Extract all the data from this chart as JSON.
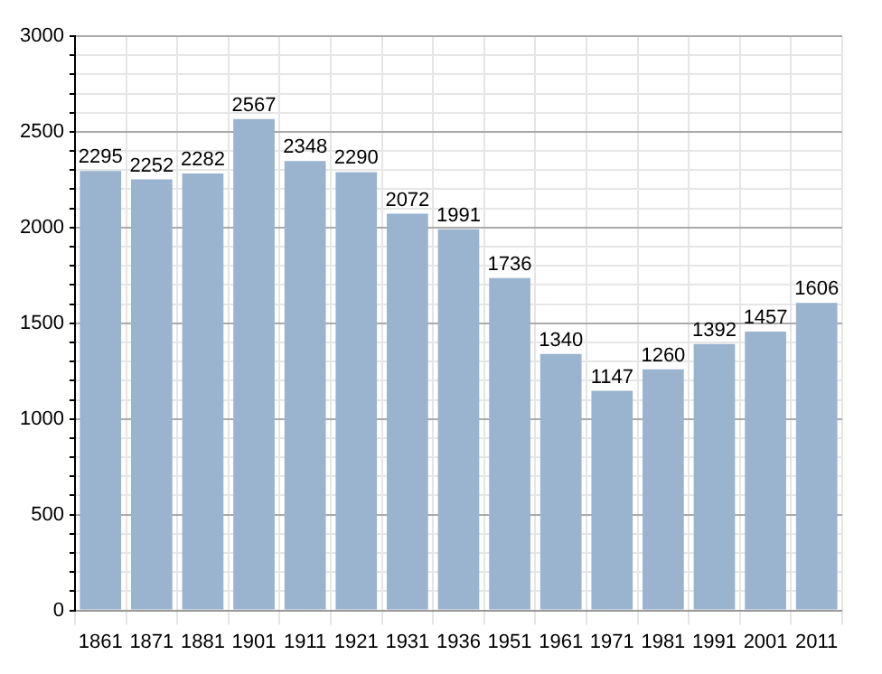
{
  "chart_data": {
    "type": "bar",
    "categories": [
      "1861",
      "1871",
      "1881",
      "1901",
      "1911",
      "1921",
      "1931",
      "1936",
      "1951",
      "1961",
      "1971",
      "1981",
      "1991",
      "2001",
      "2011"
    ],
    "values": [
      2295,
      2252,
      2282,
      2567,
      2348,
      2290,
      2072,
      1991,
      1736,
      1340,
      1147,
      1260,
      1392,
      1457,
      1606
    ],
    "color": "#9ab3cf",
    "data_labels": true,
    "ylim": [
      0,
      3000
    ],
    "yticks": [
      0,
      {
        "value": 100,
        "label": null
      },
      {
        "value": 200,
        "label": null
      },
      {
        "value": 300,
        "label": null
      },
      {
        "value": 400,
        "label": null
      },
      500,
      {
        "value": 600,
        "label": null
      },
      {
        "value": 700,
        "label": null
      },
      {
        "value": 800,
        "label": null
      },
      {
        "value": 900,
        "label": null
      },
      1000,
      {
        "value": 1100,
        "label": null
      },
      {
        "value": 1200,
        "label": null
      },
      {
        "value": 1300,
        "label": null
      },
      {
        "value": 1400,
        "label": null
      },
      1500,
      {
        "value": 1600,
        "label": null
      },
      {
        "value": 1700,
        "label": null
      },
      {
        "value": 1800,
        "label": null
      },
      {
        "value": 1900,
        "label": null
      },
      2000,
      {
        "value": 2100,
        "label": null
      },
      {
        "value": 2200,
        "label": null
      },
      {
        "value": 2300,
        "label": null
      },
      {
        "value": 2400,
        "label": null
      },
      2500,
      {
        "value": 2600,
        "label": null
      },
      {
        "value": 2700,
        "label": null
      },
      {
        "value": 2800,
        "label": null
      },
      {
        "value": 2900,
        "label": null
      },
      3000
    ],
    "grid": true,
    "legend": false
  }
}
